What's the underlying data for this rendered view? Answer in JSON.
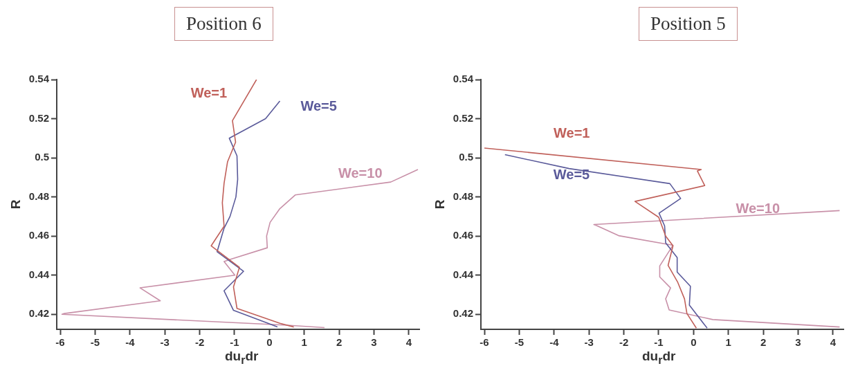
{
  "chart_data": [
    {
      "type": "line",
      "title": "Position 6",
      "xlabel": "du$_{r}$dr",
      "ylabel": "R",
      "xlim": [
        -6.1,
        4.3
      ],
      "ylim": [
        0.4123,
        0.54
      ],
      "xticks": [
        -6,
        -5,
        -4,
        -3,
        -2,
        -1,
        0,
        1,
        2,
        3,
        4
      ],
      "yticks": [
        0.42,
        0.44,
        0.46,
        0.48,
        0.5,
        0.52,
        0.54
      ],
      "grid": false,
      "legend": false,
      "marker": "none",
      "line_style": "solid",
      "series": [
        {
          "name": "We=1",
          "color": "#c0605a",
          "x": [
            -0.37,
            -1.06,
            -0.97,
            -1.2,
            -1.3,
            -1.35,
            -1.3,
            -1.67,
            -0.86,
            -1.03,
            -0.93,
            0.3,
            0.7
          ],
          "values": [
            0.54,
            0.519,
            0.508,
            0.498,
            0.487,
            0.477,
            0.465,
            0.455,
            0.444,
            0.434,
            0.423,
            0.4154,
            0.4135
          ]
        },
        {
          "name": "We=5",
          "color": "#5a5a9a",
          "x": [
            0.3,
            -0.11,
            -1.15,
            -0.93,
            -0.91,
            -0.96,
            -1.13,
            -1.3,
            -1.5,
            -0.74,
            -1.3,
            -1.03,
            -0.04,
            0.23
          ],
          "values": [
            0.529,
            0.52,
            0.51,
            0.501,
            0.489,
            0.48,
            0.47,
            0.464,
            0.452,
            0.442,
            0.432,
            0.422,
            0.4154,
            0.4135
          ]
        },
        {
          "name": "We=10",
          "color": "#c890a8",
          "x": [
            4.26,
            3.48,
            0.74,
            0.3,
            0.02,
            -0.08,
            -0.06,
            -1.13,
            -1.3,
            -0.99,
            -3.71,
            -3.13,
            -5.88,
            -5.95,
            0.5,
            1.58
          ],
          "values": [
            0.494,
            0.4876,
            0.481,
            0.474,
            0.467,
            0.46,
            0.454,
            0.448,
            0.447,
            0.44,
            0.4335,
            0.4269,
            0.4204,
            0.42,
            0.4144,
            0.4132
          ]
        }
      ]
    },
    {
      "type": "line",
      "title": "Position 5",
      "xlabel": "du$_{r}$dr",
      "ylabel": "R",
      "xlim": [
        -6.1,
        4.3
      ],
      "ylim": [
        0.4123,
        0.54
      ],
      "xticks": [
        -6,
        -5,
        -4,
        -3,
        -2,
        -1,
        0,
        1,
        2,
        3,
        4
      ],
      "yticks": [
        0.42,
        0.44,
        0.46,
        0.48,
        0.5,
        0.52,
        0.54
      ],
      "grid": false,
      "legend": false,
      "marker": "none",
      "line_style": "solid",
      "series": [
        {
          "name": "We=1",
          "color": "#c0605a",
          "x": [
            -6.0,
            0.22,
            0.11,
            0.32,
            -1.68,
            -1.0,
            -0.8,
            -0.59,
            -0.73,
            -0.46,
            -0.26,
            -0.19,
            0.08
          ],
          "values": [
            0.505,
            0.494,
            0.4933,
            0.4858,
            0.4777,
            0.4696,
            0.46,
            0.455,
            0.445,
            0.4366,
            0.4279,
            0.4204,
            0.4129
          ]
        },
        {
          "name": "We=5",
          "color": "#5a5a9a",
          "x": [
            -5.41,
            -3.57,
            -0.68,
            -0.37,
            -0.99,
            -0.83,
            -0.8,
            -0.47,
            -0.47,
            -0.09,
            -0.12,
            0.39
          ],
          "values": [
            0.5016,
            0.4945,
            0.4868,
            0.4792,
            0.4717,
            0.4652,
            0.4565,
            0.449,
            0.4416,
            0.4343,
            0.4247,
            0.4129
          ]
        },
        {
          "name": "We=10",
          "color": "#c890a8",
          "x": [
            4.19,
            -2.86,
            -2.76,
            -2.15,
            -0.59,
            -0.97,
            -0.97,
            -0.66,
            -0.8,
            -0.7,
            0.55,
            4.19
          ],
          "values": [
            0.473,
            0.4659,
            0.4652,
            0.4602,
            0.4553,
            0.4447,
            0.4391,
            0.4335,
            0.4279,
            0.4222,
            0.4173,
            0.4135
          ]
        }
      ]
    }
  ]
}
